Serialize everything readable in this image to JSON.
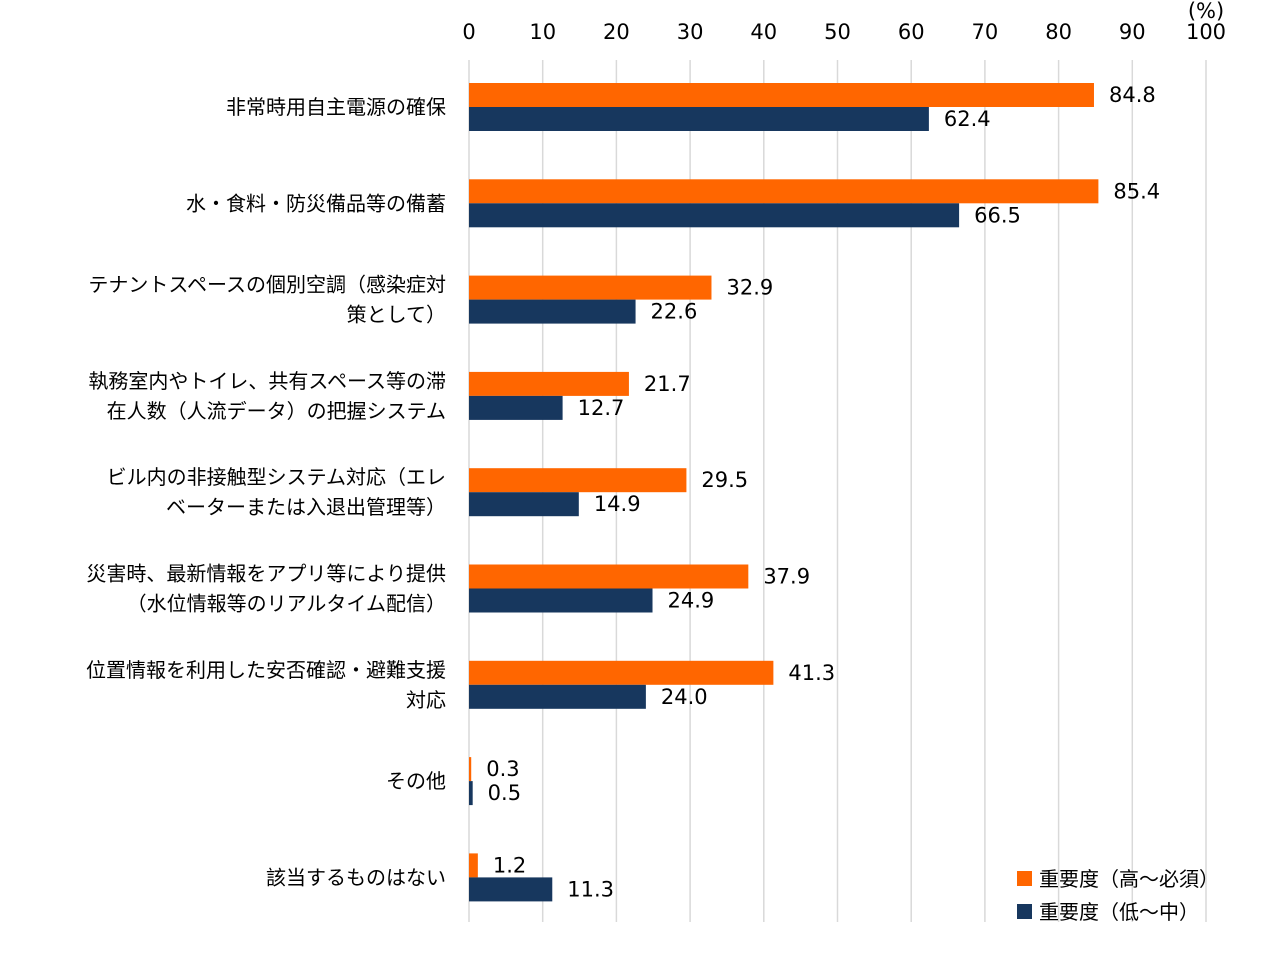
{
  "chart_data": {
    "type": "bar",
    "orientation": "horizontal",
    "unit": "(%)",
    "xlim": [
      0,
      100
    ],
    "x_ticks": [
      0,
      10,
      20,
      30,
      40,
      50,
      60,
      70,
      80,
      90,
      100
    ],
    "grid": true,
    "legend_position": "bottom-right",
    "categories": [
      "非常時用自主電源の確保",
      "水・食料・防災備品等の備蓄",
      "テナントスペースの個別空調（感染症対策として）",
      "執務室内やトイレ、共有スペース等の滞在人数（人流データ）の把握システム",
      "ビル内の非接触型システム対応（エレベーターまたは入退出管理等）",
      "災害時、最新情報をアプリ等により提供（水位情報等のリアルタイム配信）",
      "位置情報を利用した安否確認・避難支援対応",
      "その他",
      "該当するものはない"
    ],
    "category_lines": [
      [
        "非常時用自主電源の確保"
      ],
      [
        "水・食料・防災備品等の備蓄"
      ],
      [
        "テナントスペースの個別空調（感染症対",
        "策として）"
      ],
      [
        "執務室内やトイレ、共有スペース等の滞",
        "在人数（人流データ）の把握システム"
      ],
      [
        "ビル内の非接触型システム対応（エレ",
        "ベーターまたは入退出管理等）"
      ],
      [
        "災害時、最新情報をアプリ等により提供",
        "（水位情報等のリアルタイム配信）"
      ],
      [
        "位置情報を利用した安否確認・避難支援",
        "対応"
      ],
      [
        "その他"
      ],
      [
        "該当するものはない"
      ]
    ],
    "series": [
      {
        "name": "重要度（高～必須）",
        "color": "#ff6600",
        "values": [
          84.8,
          85.4,
          32.9,
          21.7,
          29.5,
          37.9,
          41.3,
          0.3,
          1.2
        ],
        "labels": [
          "84.8",
          "85.4",
          "32.9",
          "21.7",
          "29.5",
          "37.9",
          "41.3",
          "0.3",
          "1.2"
        ]
      },
      {
        "name": "重要度（低～中）",
        "color": "#17375e",
        "values": [
          62.4,
          66.5,
          22.6,
          12.7,
          14.9,
          24.9,
          24.0,
          0.5,
          11.3
        ],
        "labels": [
          "62.4",
          "66.5",
          "22.6",
          "12.7",
          "14.9",
          "24.9",
          "24.0",
          "0.5",
          "11.3"
        ]
      }
    ]
  }
}
